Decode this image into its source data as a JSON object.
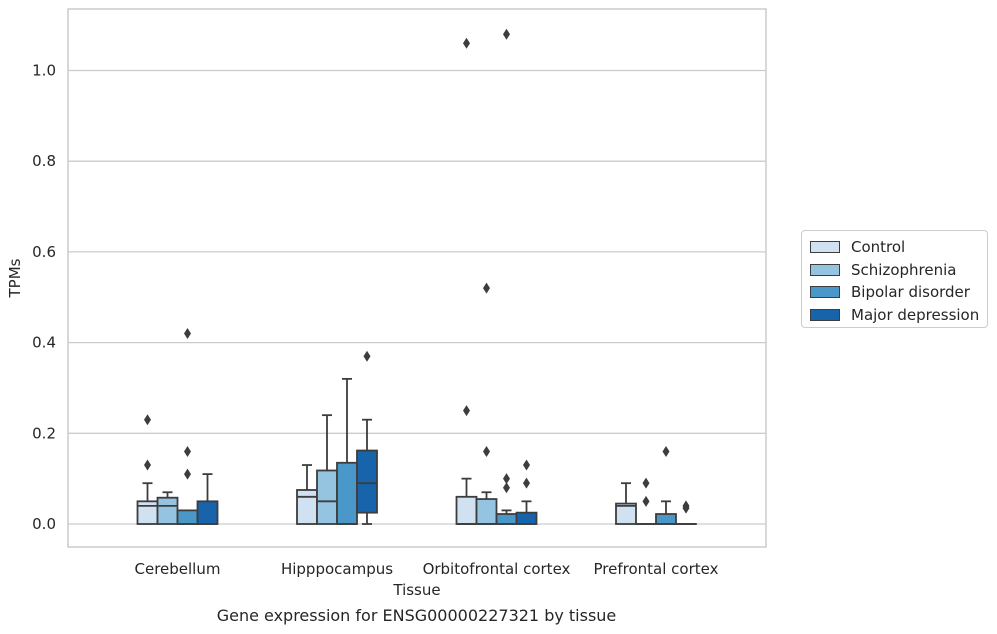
{
  "chart_data": {
    "type": "box",
    "title": "",
    "xlabel": "Tissue",
    "ylabel": "TPMs",
    "caption": "Gene expression for ENSG00000227321 by tissue",
    "ylim": [
      -0.05,
      1.14
    ],
    "yticks": [
      0.0,
      0.2,
      0.4,
      0.6,
      0.8,
      1.0
    ],
    "ytick_labels": [
      "0.0",
      "0.2",
      "0.4",
      "0.6",
      "0.8",
      "1.0"
    ],
    "grid": "horizontal",
    "legend_position": "center-right",
    "categories": [
      "Cerebellum",
      "Hipppocampus",
      "Orbitofrontal cortex",
      "Prefrontal cortex"
    ],
    "series": [
      {
        "name": "Control",
        "color": "#d0e1f2",
        "boxes": [
          {
            "q1": 0.0,
            "median": 0.04,
            "q3": 0.05,
            "whisker_low": 0.0,
            "whisker_high": 0.09,
            "outliers": [
              0.13,
              0.23
            ]
          },
          {
            "q1": 0.0,
            "median": 0.06,
            "q3": 0.075,
            "whisker_low": 0.0,
            "whisker_high": 0.13,
            "outliers": []
          },
          {
            "q1": 0.0,
            "median": 0.0,
            "q3": 0.06,
            "whisker_low": 0.0,
            "whisker_high": 0.1,
            "outliers": [
              0.25,
              1.06
            ]
          },
          {
            "q1": 0.0,
            "median": 0.04,
            "q3": 0.045,
            "whisker_low": 0.0,
            "whisker_high": 0.09,
            "outliers": []
          }
        ]
      },
      {
        "name": "Schizophrenia",
        "color": "#94c4df",
        "boxes": [
          {
            "q1": 0.0,
            "median": 0.04,
            "q3": 0.058,
            "whisker_low": 0.0,
            "whisker_high": 0.07,
            "outliers": []
          },
          {
            "q1": 0.0,
            "median": 0.05,
            "q3": 0.118,
            "whisker_low": 0.0,
            "whisker_high": 0.24,
            "outliers": []
          },
          {
            "q1": 0.0,
            "median": 0.0,
            "q3": 0.055,
            "whisker_low": 0.0,
            "whisker_high": 0.07,
            "outliers": [
              0.16,
              0.52
            ]
          },
          {
            "q1": 0.0,
            "median": 0.0,
            "q3": 0.0,
            "whisker_low": 0.0,
            "whisker_high": 0.0,
            "outliers": [
              0.05,
              0.09
            ]
          }
        ]
      },
      {
        "name": "Bipolar disorder",
        "color": "#4a98c9",
        "boxes": [
          {
            "q1": 0.0,
            "median": 0.0,
            "q3": 0.03,
            "whisker_low": 0.0,
            "whisker_high": 0.03,
            "outliers": [
              0.11,
              0.16,
              0.42
            ]
          },
          {
            "q1": 0.0,
            "median": 0.0,
            "q3": 0.135,
            "whisker_low": 0.0,
            "whisker_high": 0.32,
            "outliers": []
          },
          {
            "q1": 0.0,
            "median": 0.0,
            "q3": 0.022,
            "whisker_low": 0.0,
            "whisker_high": 0.03,
            "outliers": [
              0.08,
              0.1,
              1.08
            ]
          },
          {
            "q1": 0.0,
            "median": 0.0,
            "q3": 0.022,
            "whisker_low": 0.0,
            "whisker_high": 0.05,
            "outliers": [
              0.16
            ]
          }
        ]
      },
      {
        "name": "Major depression",
        "color": "#1764ab",
        "boxes": [
          {
            "q1": 0.0,
            "median": 0.0,
            "q3": 0.05,
            "whisker_low": 0.0,
            "whisker_high": 0.11,
            "outliers": []
          },
          {
            "q1": 0.025,
            "median": 0.09,
            "q3": 0.162,
            "whisker_low": 0.0,
            "whisker_high": 0.23,
            "outliers": [
              0.37
            ]
          },
          {
            "q1": 0.0,
            "median": 0.0,
            "q3": 0.025,
            "whisker_low": 0.0,
            "whisker_high": 0.05,
            "outliers": [
              0.09,
              0.13
            ]
          },
          {
            "q1": 0.0,
            "median": 0.0,
            "q3": 0.0,
            "whisker_low": 0.0,
            "whisker_high": 0.0,
            "outliers": [
              0.035,
              0.04
            ]
          }
        ]
      }
    ]
  }
}
